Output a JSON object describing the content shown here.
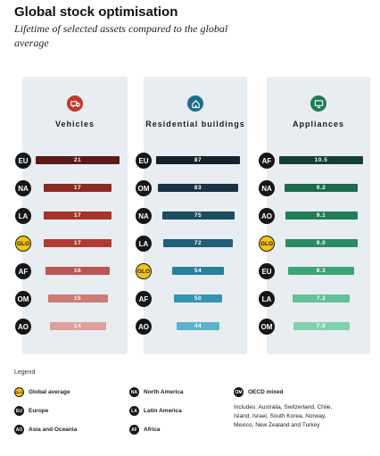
{
  "title": "Global stock optimisation",
  "subtitle": "Lifetime of selected assets compared to the global average",
  "chart_data": [
    {
      "type": "bar",
      "title": "Vehicles",
      "icon": "truck-icon",
      "icon_color": "#c0392b",
      "categories": [
        "EU",
        "NA",
        "LA",
        "GLO",
        "AF",
        "OM",
        "AO"
      ],
      "values": [
        21,
        17,
        17,
        17,
        16,
        15,
        14
      ],
      "labels": [
        "21",
        "17",
        "17",
        "17",
        "16",
        "15",
        "14"
      ],
      "colors": [
        "#5a1a18",
        "#8b2a23",
        "#a6342b",
        "#b33a31",
        "#bc5650",
        "#cc7b76",
        "#dfa09c"
      ],
      "xlim": [
        0,
        21
      ]
    },
    {
      "type": "bar",
      "title": "Residential buildings",
      "icon": "house-icon",
      "icon_color": "#1b6f8a",
      "categories": [
        "EU",
        "OM",
        "NA",
        "LA",
        "GLO",
        "AF",
        "AO"
      ],
      "values": [
        87,
        83,
        75,
        72,
        54,
        50,
        44
      ],
      "labels": [
        "87",
        "83",
        "75",
        "72",
        "54",
        "50",
        "44"
      ],
      "colors": [
        "#12222b",
        "#163443",
        "#1b4d63",
        "#1f5f78",
        "#26819c",
        "#3595b0",
        "#5bb3cc"
      ],
      "xlim": [
        0,
        87
      ]
    },
    {
      "type": "bar",
      "title": "Appliances",
      "icon": "monitor-icon",
      "icon_color": "#1f7a55",
      "categories": [
        "AF",
        "NA",
        "AO",
        "GLO",
        "EU",
        "LA",
        "OM"
      ],
      "values": [
        10.5,
        9.2,
        9.1,
        9.0,
        8.3,
        7.2,
        7.0
      ],
      "labels": [
        "10.5",
        "9.2",
        "9.1",
        "9.0",
        "8.3",
        "7.2",
        "7.0"
      ],
      "colors": [
        "#173d30",
        "#1c6b4d",
        "#227c58",
        "#2a8c63",
        "#3aa577",
        "#63c19a",
        "#7fd2af"
      ],
      "xlim": [
        0,
        10.5
      ]
    }
  ],
  "legend": {
    "title": "Legend",
    "items": [
      {
        "code": "GLO",
        "label": "Global average"
      },
      {
        "code": "EU",
        "label": "Europe"
      },
      {
        "code": "AO",
        "label": "Asia and Oceania"
      },
      {
        "code": "NA",
        "label": "North America"
      },
      {
        "code": "LA",
        "label": "Latin America"
      },
      {
        "code": "AF",
        "label": "Africa"
      },
      {
        "code": "OM",
        "label": "OECD mixed"
      }
    ],
    "note": "Includes: Australia, Switzerland, Chile, Island, Israel, South Korea, Norway, Mexico, New Zealand and Turkey"
  }
}
